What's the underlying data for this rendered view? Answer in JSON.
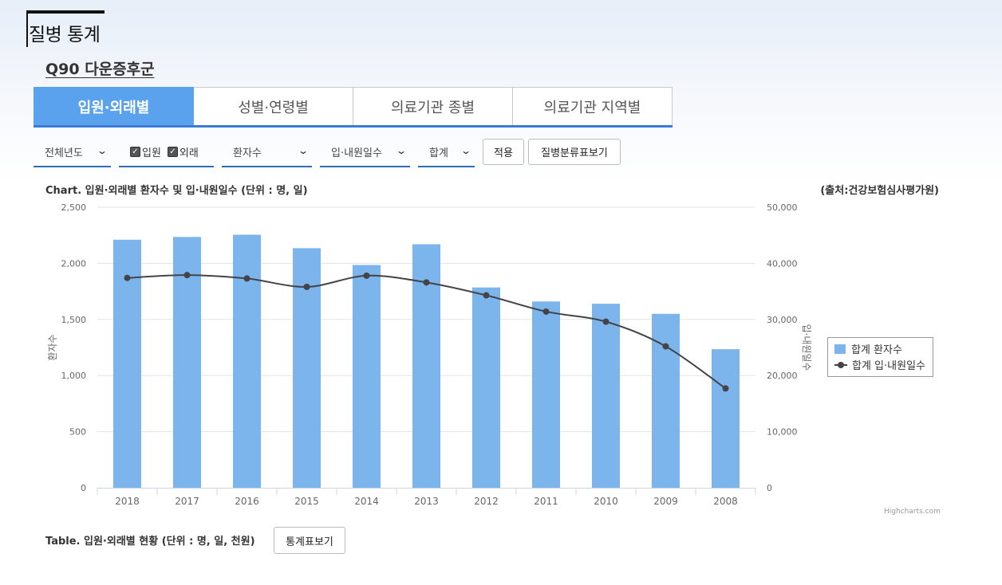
{
  "page": {
    "title": "질병 통계",
    "disease": "Q90 다운증후군"
  },
  "tabs": [
    {
      "label": "입원·외래별",
      "active": true
    },
    {
      "label": "성별·연령별",
      "active": false
    },
    {
      "label": "의료기관 종별",
      "active": false
    },
    {
      "label": "의료기관 지역별",
      "active": false
    }
  ],
  "filters": {
    "year": "전체년도",
    "inpatient_label": "입원",
    "outpatient_label": "외래",
    "measure1": "환자수",
    "measure2": "입·내원일수",
    "group": "합계",
    "apply_label": "적용",
    "classification_label": "질병분류표보기"
  },
  "chart": {
    "title": "Chart. 입원·외래별 환자수 및 입·내원일수 (단위 : 명, 일)",
    "source": "(출처:건강보험심사평가원)",
    "legend": {
      "bar": "합계 환자수",
      "line": "합계 입·내원일수"
    },
    "credits": "Highcharts.com"
  },
  "chart_data": {
    "type": "bar",
    "categories": [
      "2018",
      "2017",
      "2016",
      "2015",
      "2014",
      "2013",
      "2012",
      "2011",
      "2010",
      "2009",
      "2008"
    ],
    "series": [
      {
        "name": "합계 환자수",
        "type": "bar",
        "axis": "left",
        "color": "#7cb5ec",
        "values": [
          2210,
          2235,
          2255,
          2135,
          1985,
          2170,
          1785,
          1660,
          1640,
          1550,
          1235
        ]
      },
      {
        "name": "합계 입·내원일수",
        "type": "line",
        "axis": "right",
        "color": "#434348",
        "values": [
          37400,
          37900,
          37300,
          35800,
          37800,
          36600,
          34300,
          31400,
          29600,
          25200,
          17700
        ]
      }
    ],
    "ylabel": "환자수",
    "ylim": [
      0,
      2500
    ],
    "yticks": [
      "0",
      "500",
      "1,000",
      "1,500",
      "2,000",
      "2,500"
    ],
    "y2label": "입·내원일수",
    "y2lim": [
      0,
      50000
    ],
    "y2ticks": [
      "0",
      "10,000",
      "20,000",
      "30,000",
      "40,000",
      "50,000"
    ],
    "grid": true,
    "legend_position": "right"
  },
  "table": {
    "title": "Table. 입원·외래별 현황 (단위 : 명, 일, 천원)",
    "button_label": "통계표보기"
  }
}
